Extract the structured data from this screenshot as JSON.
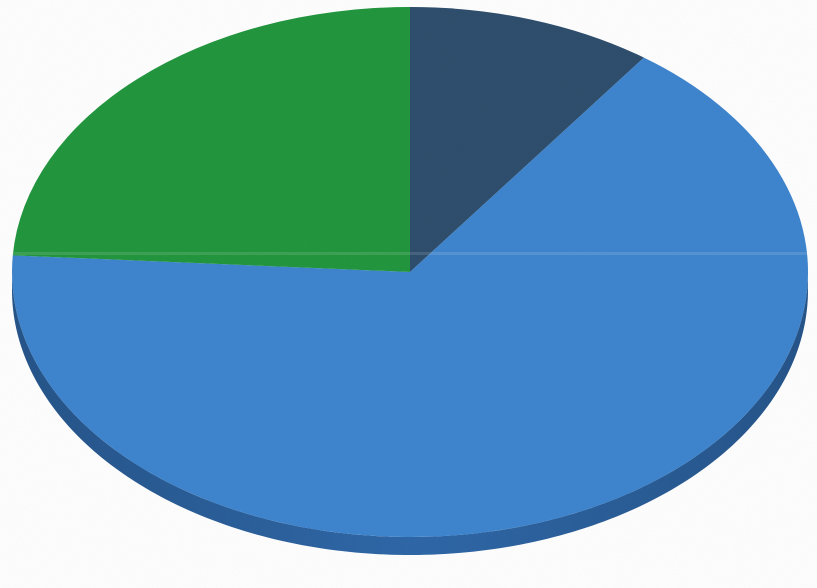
{
  "chart_data": {
    "type": "pie",
    "style": "3d",
    "labels": [
      "",
      "",
      ""
    ],
    "values": [
      10,
      66,
      24
    ],
    "colors": [
      "#2f4f6e",
      "#3f86cf",
      "#23973f"
    ],
    "side_colors": [
      "#24405a",
      "#2f68a8",
      "#1b7532"
    ],
    "start_angle_deg": 90,
    "direction": "clockwise",
    "legend": "none",
    "title": ""
  }
}
